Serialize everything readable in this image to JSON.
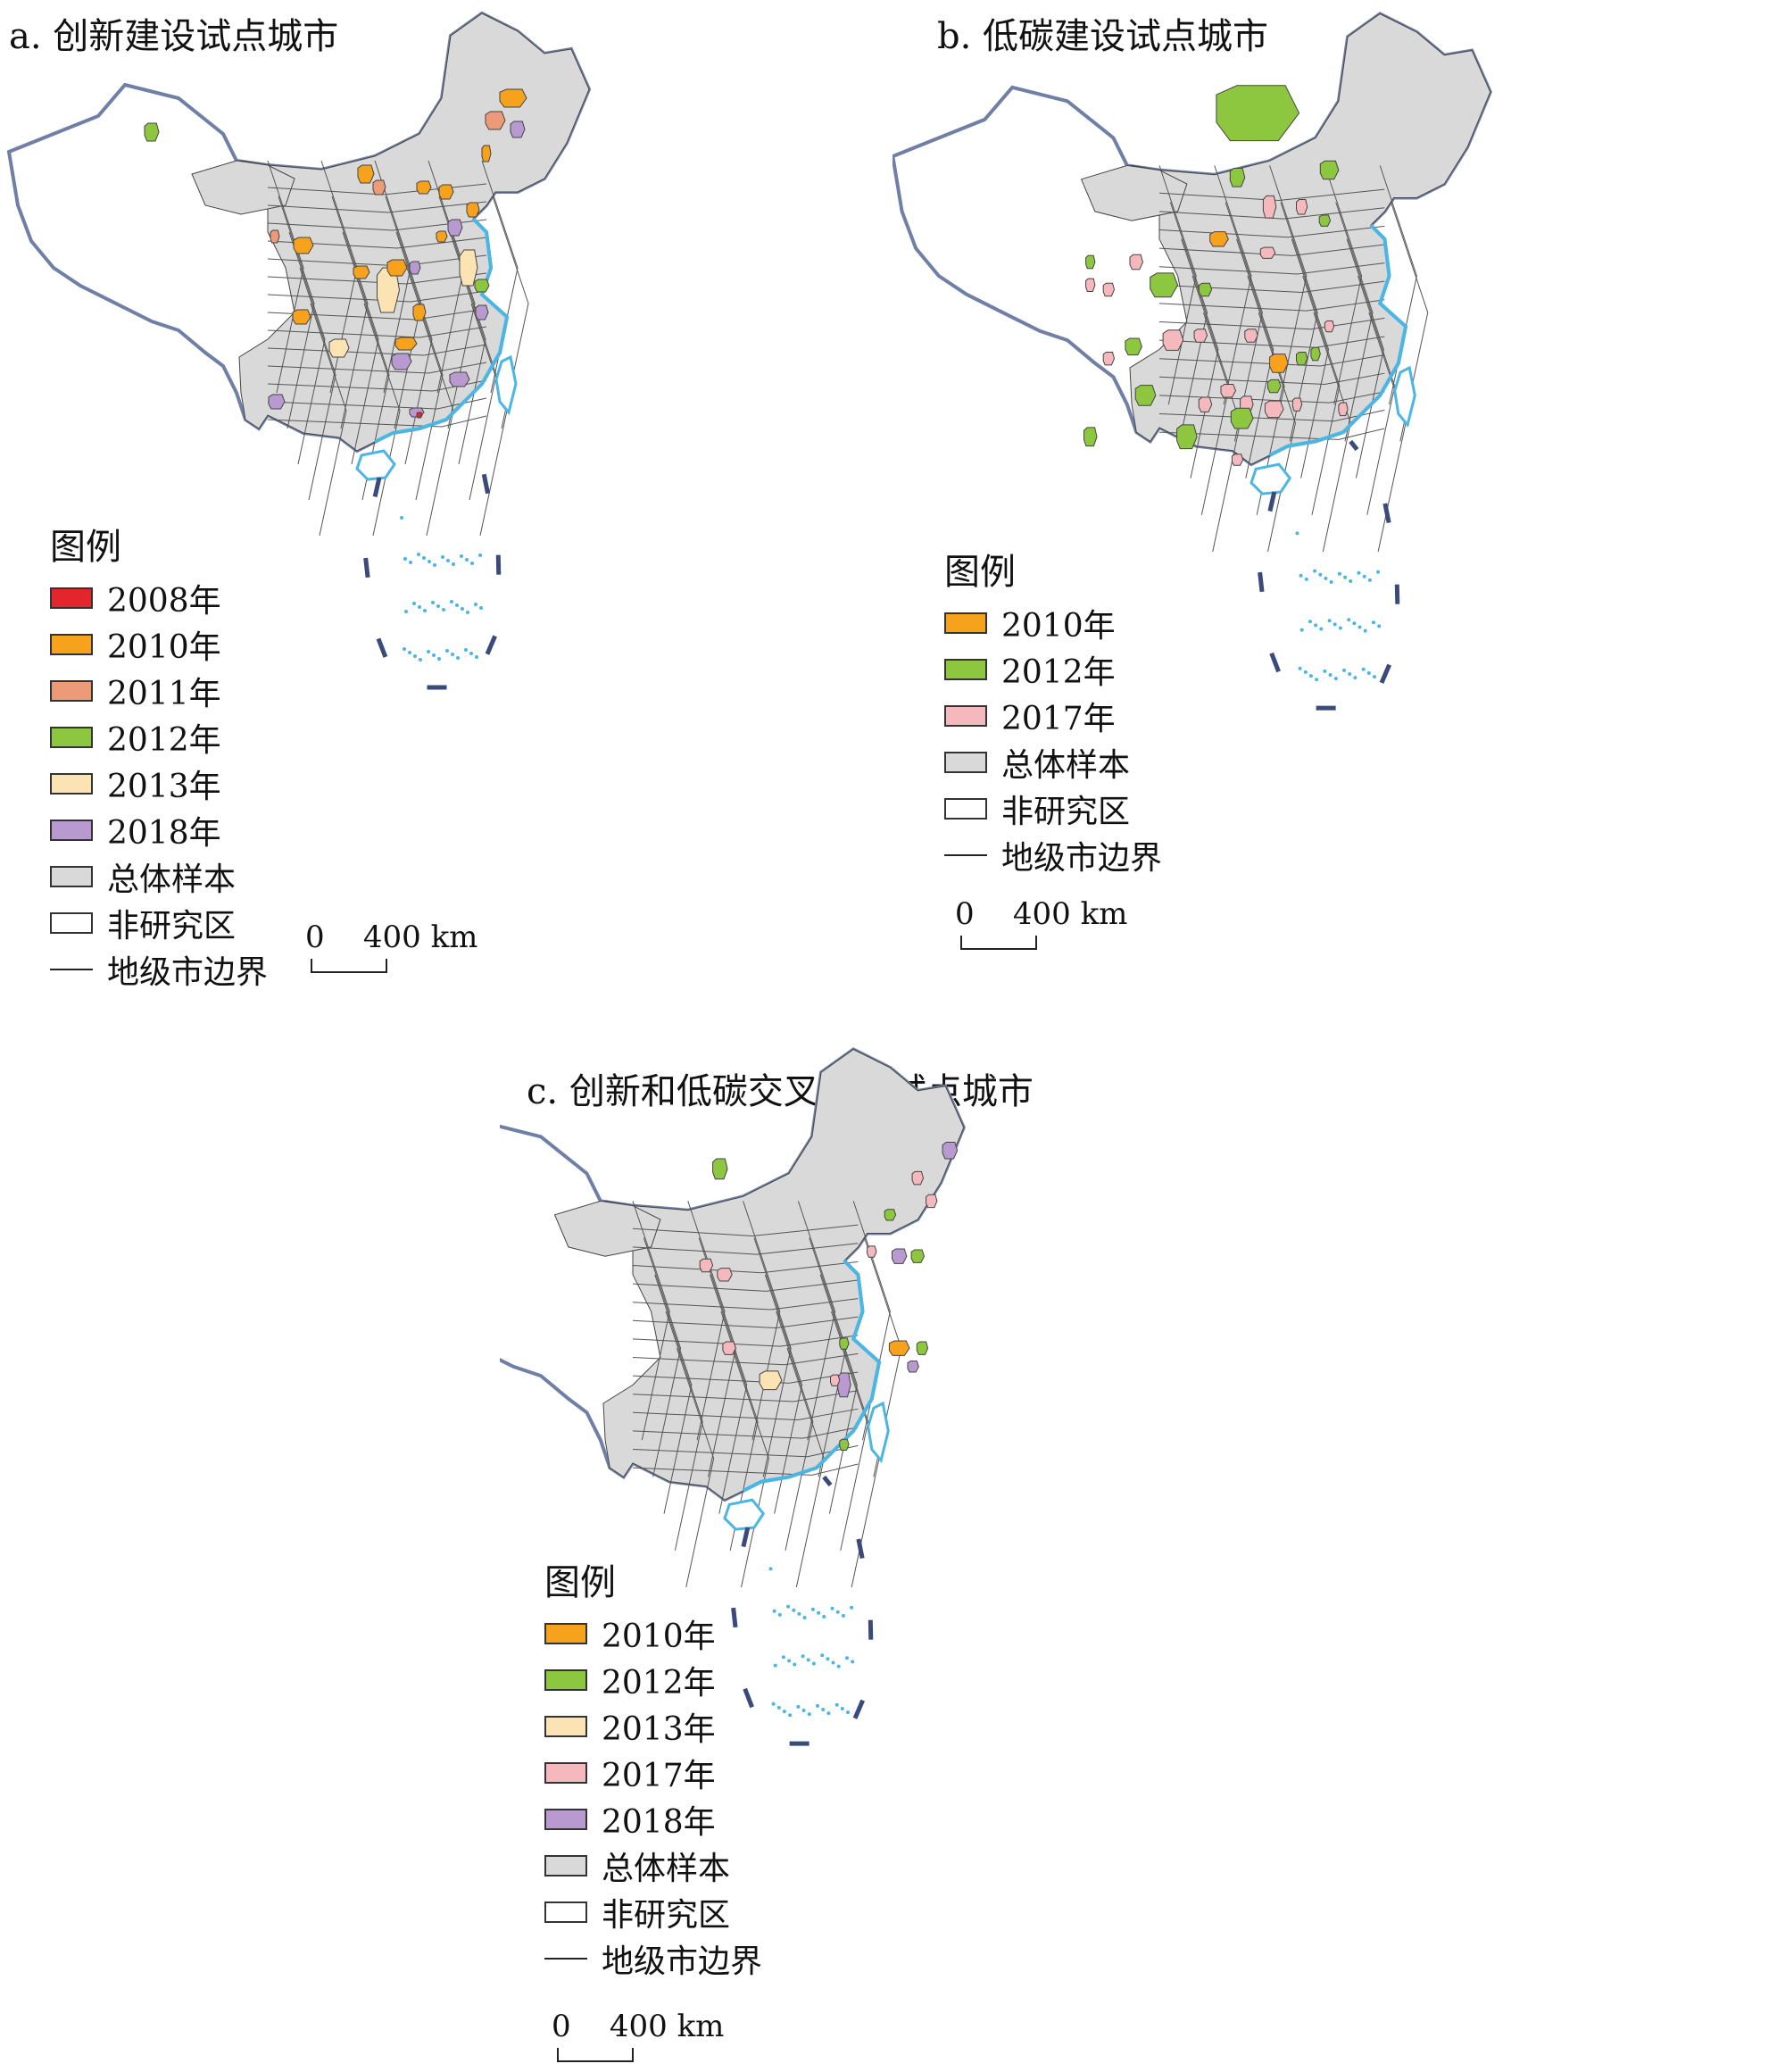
{
  "colors": {
    "c2008": "#e3262b",
    "c2010": "#f6a21c",
    "c2011": "#ec9a78",
    "c2012": "#8dc63f",
    "c2013": "#fbe3b3",
    "c2017": "#f4b8bd",
    "c2018": "#b89ad1",
    "sample": "#d9d9d9",
    "nonstudy": "#ffffff",
    "coast": "#4bb6e3",
    "border": "#6f7fa6"
  },
  "panel_a": {
    "title": "a. 创新建设试点城市",
    "legend_heading": "图例",
    "legend": [
      {
        "label": "2008年",
        "color": "#e3262b",
        "kind": "box"
      },
      {
        "label": "2010年",
        "color": "#f6a21c",
        "kind": "box"
      },
      {
        "label": "2011年",
        "color": "#ec9a78",
        "kind": "box"
      },
      {
        "label": "2012年",
        "color": "#8dc63f",
        "kind": "box"
      },
      {
        "label": "2013年",
        "color": "#fbe3b3",
        "kind": "box"
      },
      {
        "label": "2018年",
        "color": "#b89ad1",
        "kind": "box"
      },
      {
        "label": "总体样本",
        "color": "#d9d9d9",
        "kind": "box"
      },
      {
        "label": "非研究区",
        "color": "#ffffff",
        "kind": "box"
      },
      {
        "label": "地级市边界",
        "color": "#222222",
        "kind": "line"
      }
    ],
    "scale_label": "0    400 km"
  },
  "panel_b": {
    "title": "b. 低碳建设试点城市",
    "legend_heading": "图例",
    "legend": [
      {
        "label": "2010年",
        "color": "#f6a21c",
        "kind": "box"
      },
      {
        "label": "2012年",
        "color": "#8dc63f",
        "kind": "box"
      },
      {
        "label": "2017年",
        "color": "#f4b8bd",
        "kind": "box"
      },
      {
        "label": "总体样本",
        "color": "#d9d9d9",
        "kind": "box"
      },
      {
        "label": "非研究区",
        "color": "#ffffff",
        "kind": "box"
      },
      {
        "label": "地级市边界",
        "color": "#222222",
        "kind": "line"
      }
    ],
    "scale_label": "0    400 km"
  },
  "panel_c": {
    "title": "c. 创新和低碳交叉建设试点城市",
    "legend_heading": "图例",
    "legend": [
      {
        "label": "2010年",
        "color": "#f6a21c",
        "kind": "box"
      },
      {
        "label": "2012年",
        "color": "#8dc63f",
        "kind": "box"
      },
      {
        "label": "2013年",
        "color": "#fbe3b3",
        "kind": "box"
      },
      {
        "label": "2017年",
        "color": "#f4b8bd",
        "kind": "box"
      },
      {
        "label": "2018年",
        "color": "#b89ad1",
        "kind": "box"
      },
      {
        "label": "总体样本",
        "color": "#d9d9d9",
        "kind": "box"
      },
      {
        "label": "非研究区",
        "color": "#ffffff",
        "kind": "box"
      },
      {
        "label": "地级市边界",
        "color": "#222222",
        "kind": "line"
      }
    ],
    "scale_label": "0    400 km"
  }
}
